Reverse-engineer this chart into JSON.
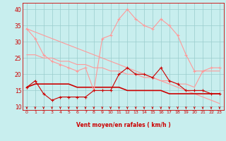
{
  "x": [
    0,
    1,
    2,
    3,
    4,
    5,
    6,
    7,
    8,
    9,
    10,
    11,
    12,
    13,
    14,
    15,
    16,
    17,
    18,
    19,
    20,
    21,
    22,
    23
  ],
  "rafales": [
    34,
    31,
    26,
    24,
    23,
    22,
    21,
    22,
    15,
    31,
    32,
    37,
    40,
    37,
    35,
    34,
    37,
    35,
    32,
    26,
    21,
    21,
    22,
    22
  ],
  "moyen": [
    16,
    18,
    14,
    12,
    13,
    13,
    13,
    13,
    15,
    15,
    15,
    20,
    22,
    20,
    20,
    19,
    22,
    18,
    17,
    15,
    15,
    15,
    14,
    14
  ],
  "trend1": [
    34,
    33,
    32,
    31,
    30,
    29,
    28,
    27,
    26,
    25,
    24,
    23,
    22,
    21,
    20,
    19,
    18,
    17,
    16,
    15,
    14,
    13,
    12,
    11
  ],
  "trend2": [
    26,
    26,
    25,
    25,
    24,
    24,
    23,
    23,
    22,
    22,
    21,
    21,
    20,
    20,
    19,
    19,
    18,
    18,
    17,
    17,
    16,
    21,
    21,
    21
  ],
  "trend3": [
    16,
    17,
    17,
    17,
    17,
    17,
    16,
    16,
    16,
    16,
    16,
    16,
    15,
    15,
    15,
    15,
    15,
    14,
    14,
    14,
    14,
    14,
    14,
    14
  ],
  "bg_color": "#c8eeee",
  "grid_color": "#99cccc",
  "line_dark_color": "#cc0000",
  "line_light_color": "#ff9999",
  "xlabel": "Vent moyen/en rafales ( km/h )",
  "ylim": [
    9,
    42
  ],
  "xlim": [
    -0.5,
    23.5
  ],
  "yticks": [
    10,
    15,
    20,
    25,
    30,
    35,
    40
  ],
  "xticks": [
    0,
    1,
    2,
    3,
    4,
    5,
    6,
    7,
    8,
    9,
    10,
    11,
    12,
    13,
    14,
    15,
    16,
    17,
    18,
    19,
    20,
    21,
    22,
    23
  ]
}
